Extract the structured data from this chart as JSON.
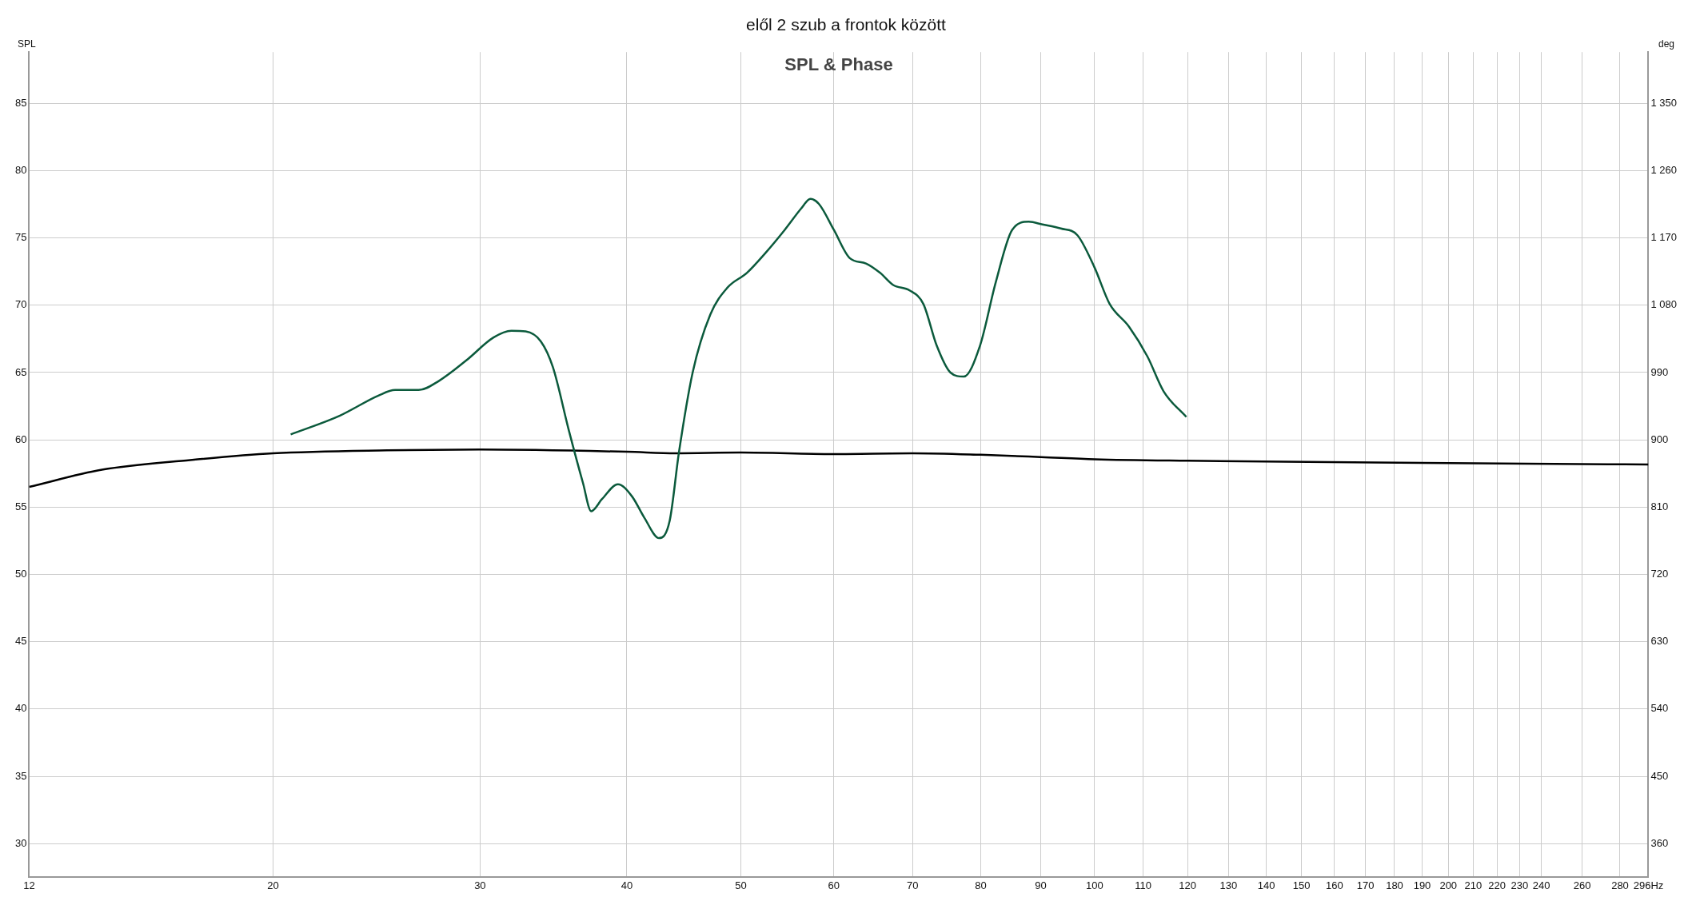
{
  "chart_data": {
    "type": "line",
    "title": "elől 2 szub a frontok között",
    "subtitle": "SPL & Phase",
    "ylabel": "SPL",
    "y2label": "deg",
    "xlim": [
      12.4,
      296
    ],
    "xticks": [
      {
        "value": 12.4,
        "label": "12"
      },
      20,
      30,
      40,
      50,
      60,
      70,
      80,
      90,
      100,
      110,
      120,
      130,
      140,
      150,
      160,
      170,
      180,
      190,
      200,
      210,
      220,
      230,
      240,
      260,
      280,
      {
        "value": 296,
        "label": "296Hz"
      }
    ],
    "ylim": [
      27.5,
      88.8
    ],
    "yticks": [
      30,
      35,
      40,
      45,
      50,
      55,
      60,
      65,
      70,
      75,
      80,
      85
    ],
    "y2lim": [
      315,
      1418.4
    ],
    "y2ticks": [
      360,
      450,
      540,
      630,
      720,
      810,
      900,
      990,
      {
        "value": 1080,
        "label": "1 080"
      },
      {
        "value": 1170,
        "label": "1 170"
      },
      {
        "value": 1260,
        "label": "1 260"
      },
      {
        "value": 1350,
        "label": "1 350"
      }
    ],
    "log": "x",
    "grid": true,
    "legend": false,
    "marker": "none",
    "line_style": "solid",
    "series": [
      {
        "color": "#0b5a3c",
        "x": [
          20.7,
          22.8,
          24.6,
          25.4,
          26.6,
          27.7,
          29.2,
          30.8,
          31.9,
          32.8,
          33.8,
          34.6,
          35.7,
          36.7,
          37.3,
          38.1,
          39.3,
          40.4,
          41.4,
          42.6,
          43.5,
          44.3,
          45.5,
          47.1,
          48.7,
          50.6,
          52.5,
          54.5,
          56.3,
          57.3,
          58.3,
          60.0,
          61.9,
          63.9,
          65.7,
          67.4,
          69.6,
          71.5,
          73.4,
          75.4,
          77.4,
          79.9,
          82.4,
          85.1,
          87.9,
          90.3,
          93.6,
          96.7,
          100,
          103,
          107,
          110.9,
          114.5,
          119.7
        ],
        "values": [
          60.4,
          61.8,
          63.3,
          63.7,
          63.7,
          64.4,
          65.9,
          67.6,
          68.1,
          68.05,
          67.3,
          65.4,
          60.7,
          56.8,
          54.7,
          55.6,
          56.7,
          55.8,
          54.2,
          52.7,
          54.0,
          59.1,
          65.0,
          69.3,
          71.3,
          72.4,
          73.9,
          75.6,
          77.2,
          77.9,
          77.5,
          75.6,
          73.5,
          73.1,
          72.4,
          71.5,
          71.1,
          70.1,
          67.0,
          65.0,
          64.7,
          67.0,
          71.7,
          75.6,
          76.2,
          76.0,
          75.7,
          75.2,
          72.8,
          70.1,
          68.4,
          66.2,
          63.6,
          61.7
        ]
      },
      {
        "color": "#000000",
        "axis": "y2",
        "x": [
          12.4,
          14.3,
          17,
          20,
          25,
          30,
          40,
          44,
          50,
          60,
          70,
          80,
          90,
          100,
          120,
          200,
          296
        ],
        "values": [
          837,
          860,
          873,
          882,
          886,
          887,
          884,
          882,
          883,
          881,
          882,
          880,
          877,
          874,
          872,
          869,
          867
        ]
      }
    ]
  }
}
